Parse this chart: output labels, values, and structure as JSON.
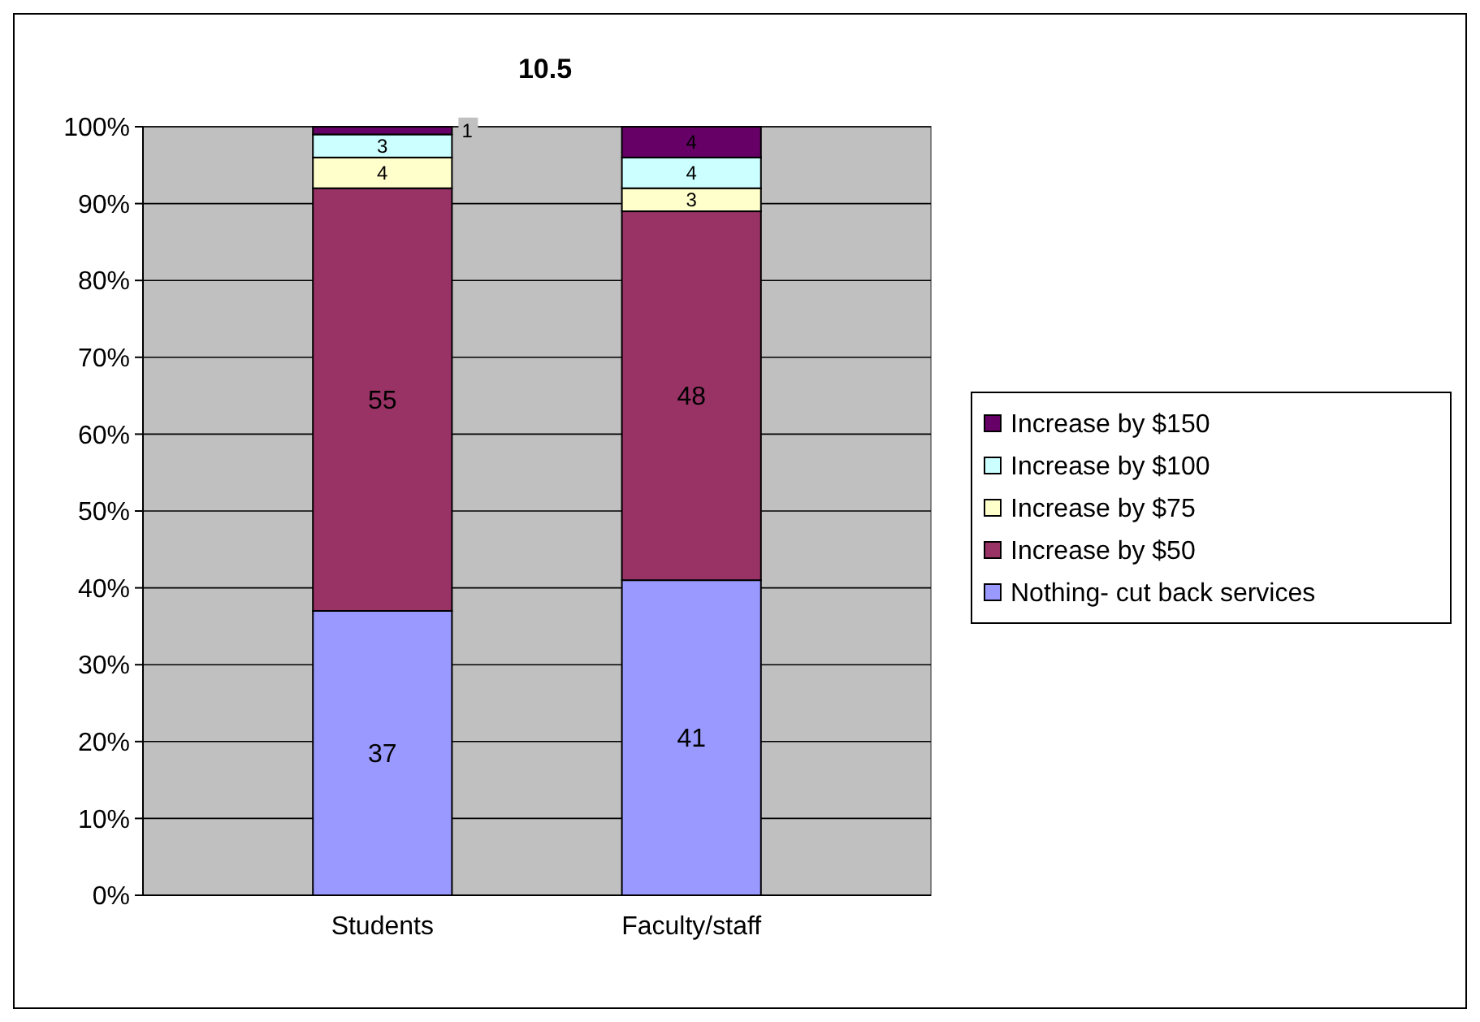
{
  "chart_data": {
    "type": "bar",
    "title": "10.5",
    "stacked": true,
    "categories": [
      "Students",
      "Faculty/staff"
    ],
    "series": [
      {
        "name": "Nothing- cut back services",
        "color": "#9999ff",
        "values": [
          37,
          41
        ]
      },
      {
        "name": "Increase by $50",
        "color": "#993366",
        "values": [
          55,
          48
        ]
      },
      {
        "name": "Increase by $75",
        "color": "#ffffcc",
        "values": [
          4,
          3
        ]
      },
      {
        "name": "Increase by $100",
        "color": "#ccffff",
        "values": [
          3,
          4
        ]
      },
      {
        "name": "Increase by $150",
        "color": "#660066",
        "values": [
          1,
          4
        ]
      }
    ],
    "ylim": [
      0,
      100
    ],
    "yticks": [
      {
        "value": 0,
        "label": "0%"
      },
      {
        "value": 10,
        "label": "10%"
      },
      {
        "value": 20,
        "label": "20%"
      },
      {
        "value": 30,
        "label": "30%"
      },
      {
        "value": 40,
        "label": "40%"
      },
      {
        "value": 50,
        "label": "50%"
      },
      {
        "value": 60,
        "label": "60%"
      },
      {
        "value": 70,
        "label": "70%"
      },
      {
        "value": 80,
        "label": "80%"
      },
      {
        "value": 90,
        "label": "90%"
      },
      {
        "value": 100,
        "label": "100%"
      }
    ],
    "grid": "y",
    "legend": "right",
    "data_labels": true
  }
}
